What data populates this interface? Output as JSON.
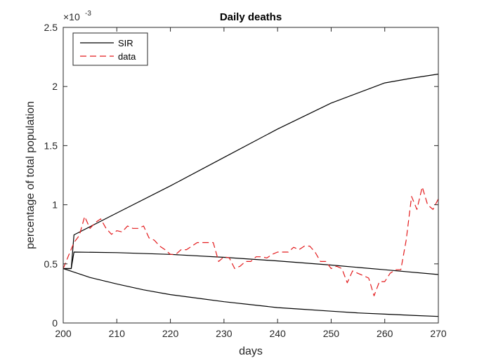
{
  "chart_data": {
    "type": "line",
    "title": "Daily deaths",
    "xlabel": "days",
    "ylabel": "percentage of total population",
    "y_exponent_label": "×10",
    "y_exponent_power": "-3",
    "xlim": [
      200,
      270
    ],
    "ylim": [
      0,
      2.5
    ],
    "x_ticks": [
      200,
      210,
      220,
      230,
      240,
      250,
      260,
      270
    ],
    "x_tick_labels": [
      "200",
      "210",
      "220",
      "230",
      "240",
      "250",
      "260",
      "270"
    ],
    "y_ticks": [
      0,
      0.5,
      1,
      1.5,
      2,
      2.5
    ],
    "y_tick_labels": [
      "0",
      "0.5",
      "1",
      "1.5",
      "2",
      "2.5"
    ],
    "legend_position": "top-left",
    "grid": false,
    "series": [
      {
        "name": "SIR",
        "color": "#000000",
        "dash": "solid",
        "x": [
          200,
          201.5,
          202,
          210,
          220,
          230,
          240,
          250,
          260,
          265,
          270
        ],
        "y": [
          0.46,
          0.46,
          0.745,
          0.93,
          1.16,
          1.4,
          1.64,
          1.86,
          2.03,
          2.07,
          2.105
        ]
      },
      {
        "name": "",
        "color": "#000000",
        "dash": "solid",
        "x": [
          200,
          201.5,
          202,
          210,
          220,
          230,
          240,
          250,
          260,
          270
        ],
        "y": [
          0.46,
          0.46,
          0.6,
          0.595,
          0.58,
          0.555,
          0.525,
          0.49,
          0.45,
          0.41
        ]
      },
      {
        "name": "",
        "color": "#000000",
        "dash": "solid",
        "x": [
          200,
          202,
          205,
          210,
          215,
          220,
          225,
          230,
          235,
          240,
          245,
          250,
          255,
          260,
          265,
          270
        ],
        "y": [
          0.46,
          0.43,
          0.385,
          0.33,
          0.28,
          0.24,
          0.21,
          0.18,
          0.155,
          0.13,
          0.115,
          0.1,
          0.085,
          0.075,
          0.065,
          0.055
        ]
      },
      {
        "name": "data",
        "color": "#e31a1c",
        "dash": "dashed",
        "x": [
          200,
          201,
          202,
          203,
          204,
          205,
          206,
          207,
          208,
          209,
          210,
          211,
          212,
          213,
          214,
          215,
          216,
          217,
          218,
          219,
          220,
          221,
          222,
          223,
          224,
          225,
          226,
          227,
          228,
          229,
          230,
          231,
          232,
          233,
          234,
          235,
          236,
          237,
          238,
          239,
          240,
          241,
          242,
          243,
          244,
          245,
          246,
          247,
          248,
          249,
          250,
          251,
          252,
          253,
          254,
          255,
          256,
          257,
          258,
          259,
          260,
          261,
          262,
          263,
          264,
          265,
          266,
          267,
          268,
          269,
          270
        ],
        "y": [
          0.46,
          0.57,
          0.68,
          0.74,
          0.9,
          0.8,
          0.85,
          0.88,
          0.8,
          0.75,
          0.78,
          0.77,
          0.82,
          0.8,
          0.8,
          0.82,
          0.72,
          0.7,
          0.65,
          0.62,
          0.58,
          0.58,
          0.62,
          0.62,
          0.65,
          0.68,
          0.68,
          0.68,
          0.68,
          0.52,
          0.56,
          0.55,
          0.46,
          0.48,
          0.52,
          0.52,
          0.56,
          0.56,
          0.55,
          0.58,
          0.6,
          0.6,
          0.6,
          0.64,
          0.62,
          0.65,
          0.65,
          0.6,
          0.52,
          0.52,
          0.46,
          0.48,
          0.46,
          0.34,
          0.44,
          0.42,
          0.4,
          0.38,
          0.23,
          0.35,
          0.35,
          0.42,
          0.45,
          0.45,
          0.7,
          1.07,
          0.96,
          1.15,
          1.0,
          0.96,
          1.05
        ]
      }
    ]
  }
}
